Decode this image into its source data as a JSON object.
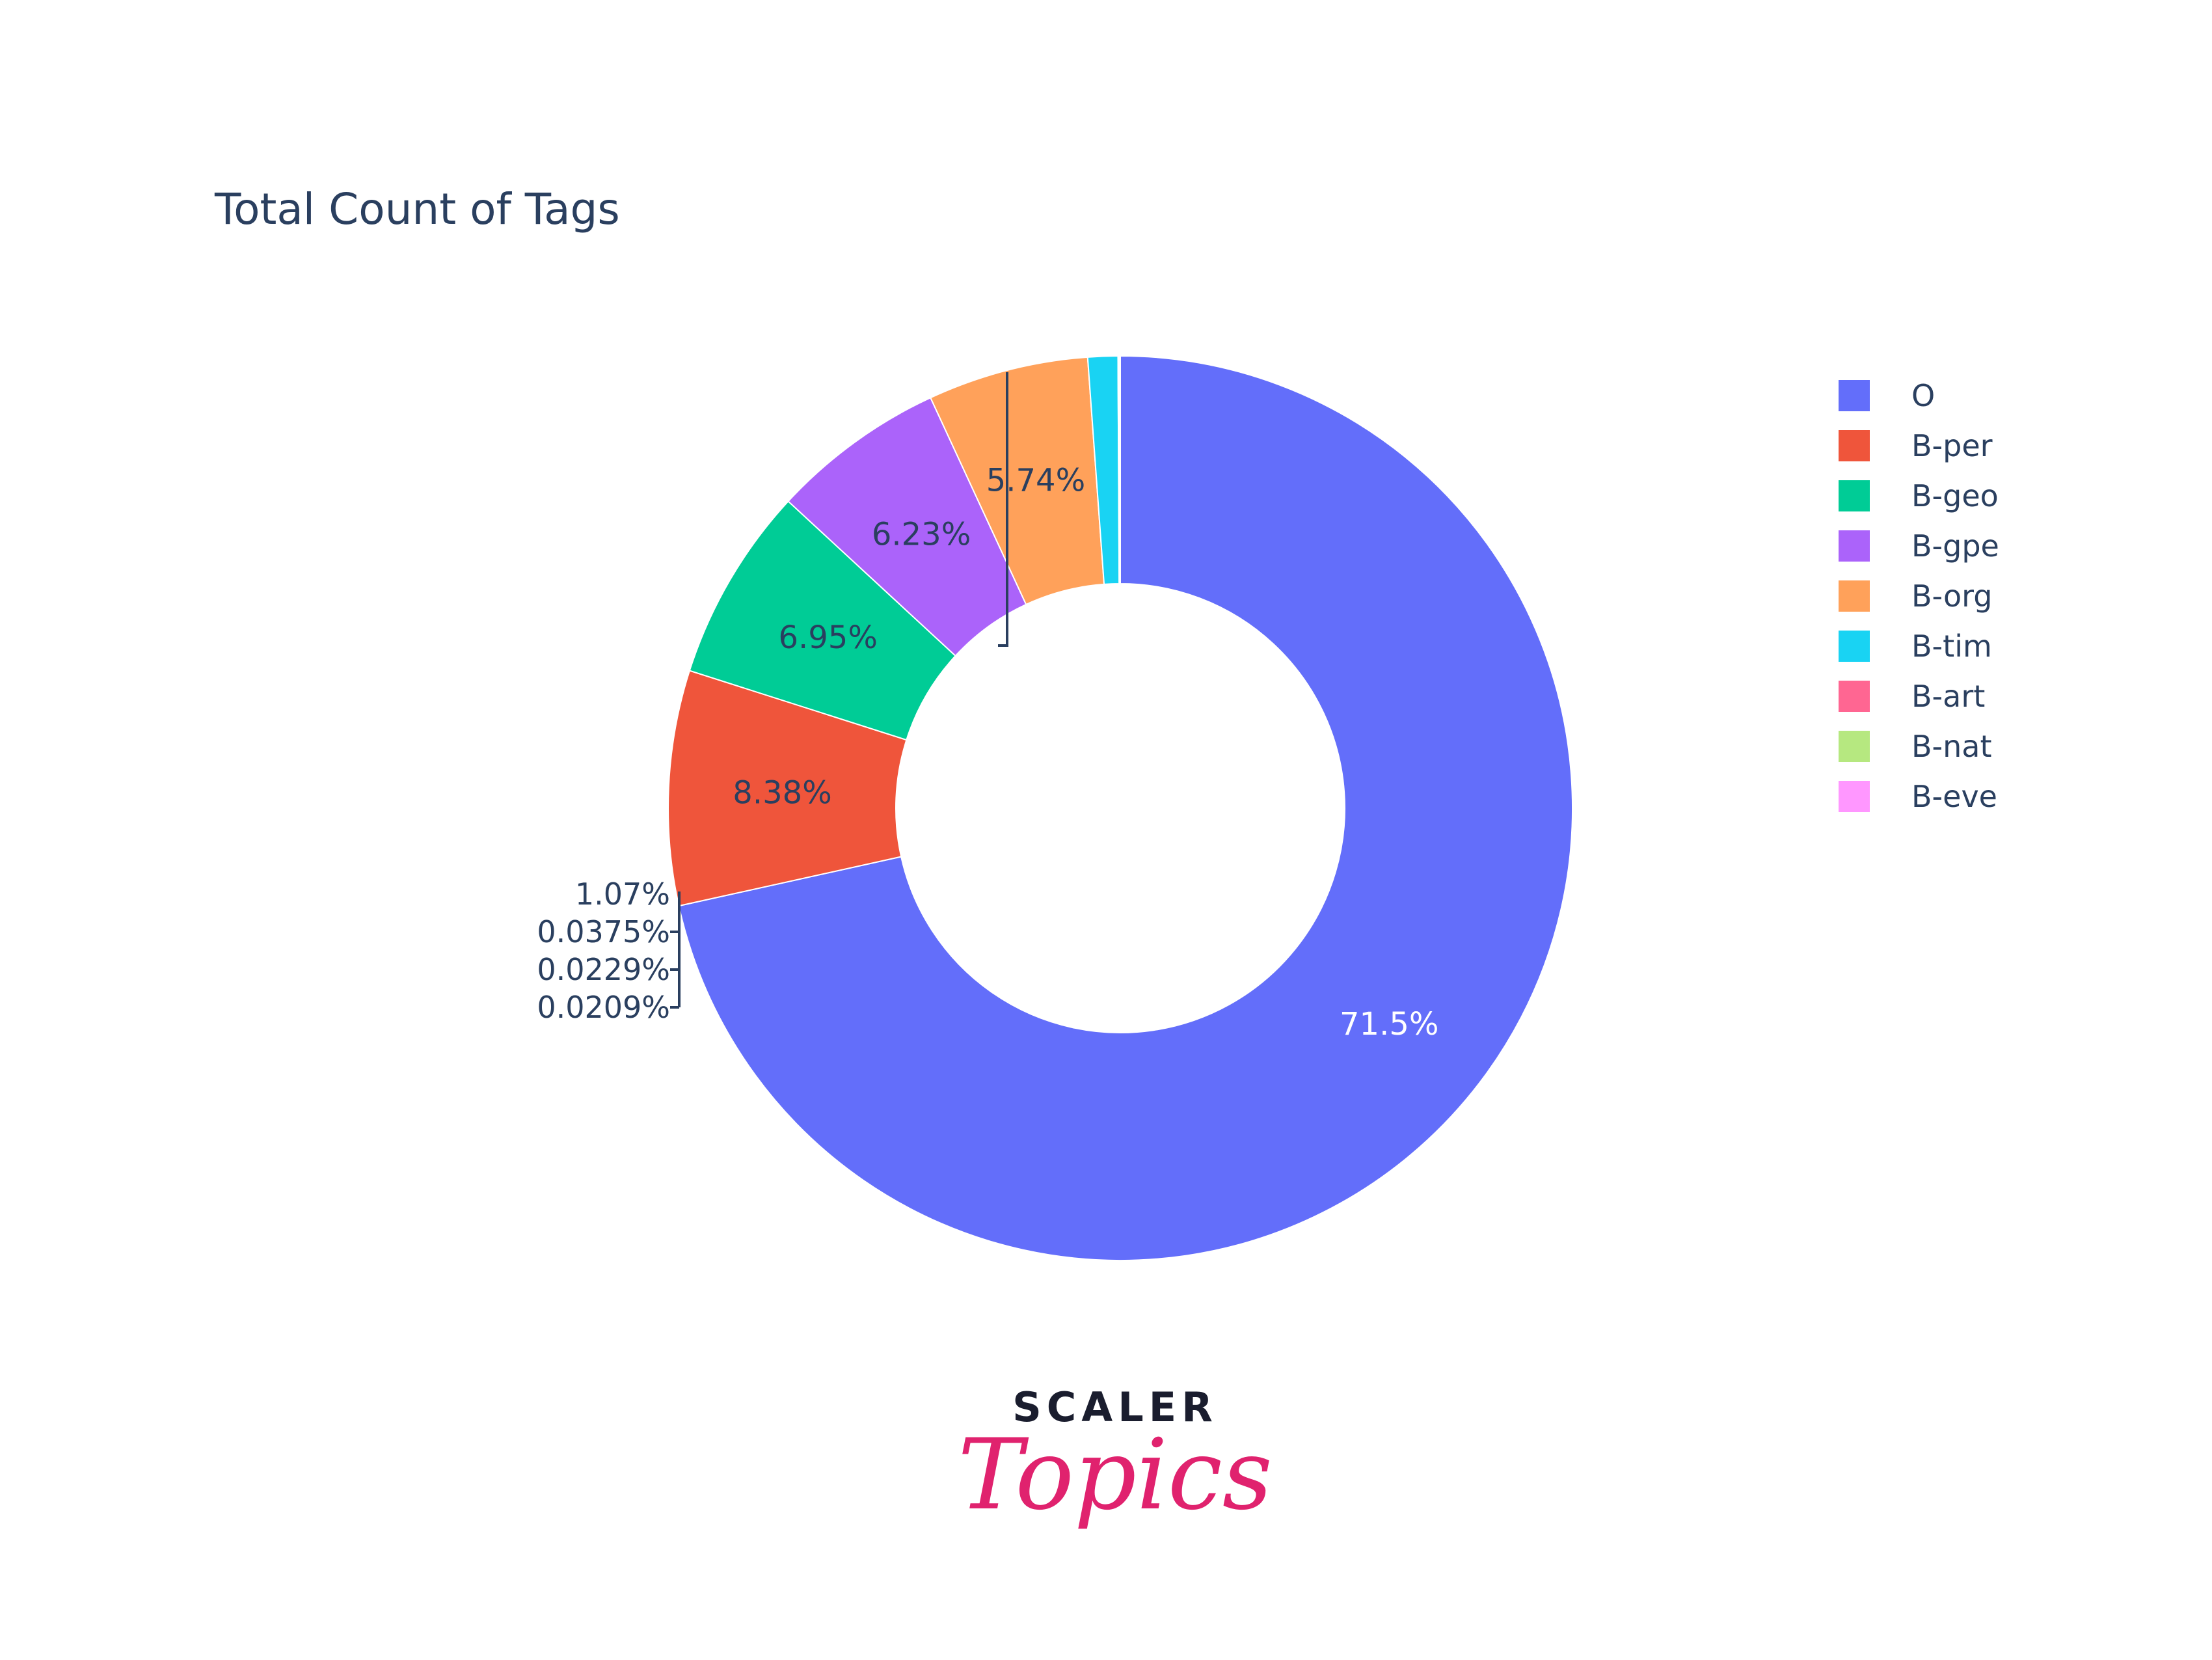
{
  "chart_data": {
    "type": "pie",
    "hole": true,
    "title": "Total Count of Tags",
    "slices": [
      {
        "label": "O",
        "percent": 71.5,
        "percent_text": "71.5%",
        "color": "#636efa",
        "label_color": "#ffffff",
        "label_pos": "inside"
      },
      {
        "label": "B-per",
        "percent": 8.38,
        "percent_text": "8.38%",
        "color": "#ef553b",
        "label_color": "#2a3f5f",
        "label_pos": "inside"
      },
      {
        "label": "B-geo",
        "percent": 6.95,
        "percent_text": "6.95%",
        "color": "#00cc96",
        "label_color": "#2a3f5f",
        "label_pos": "inside"
      },
      {
        "label": "B-gpe",
        "percent": 6.23,
        "percent_text": "6.23%",
        "color": "#ab63fa",
        "label_color": "#2a3f5f",
        "label_pos": "inside"
      },
      {
        "label": "B-org",
        "percent": 5.74,
        "percent_text": "5.74%",
        "color": "#ffa15a",
        "label_color": "#2a3f5f",
        "label_pos": "inside"
      },
      {
        "label": "B-tim",
        "percent": 1.07,
        "percent_text": "1.07%",
        "color": "#19d3f3",
        "label_color": "#2a3f5f",
        "label_pos": "outside"
      },
      {
        "label": "B-art",
        "percent": 0.0375,
        "percent_text": "0.0375%",
        "color": "#ff6692",
        "label_color": "#2a3f5f",
        "label_pos": "outside"
      },
      {
        "label": "B-nat",
        "percent": 0.0229,
        "percent_text": "0.0229%",
        "color": "#b6e880",
        "label_color": "#2a3f5f",
        "label_pos": "outside"
      },
      {
        "label": "B-eve",
        "percent": 0.0209,
        "percent_text": "0.0209%",
        "color": "#ff97ff",
        "label_color": "#2a3f5f",
        "label_pos": "outside"
      }
    ],
    "direction": "clockwise",
    "legend": "right"
  },
  "logo": {
    "line1": "SCALER",
    "line2": "Topics"
  }
}
